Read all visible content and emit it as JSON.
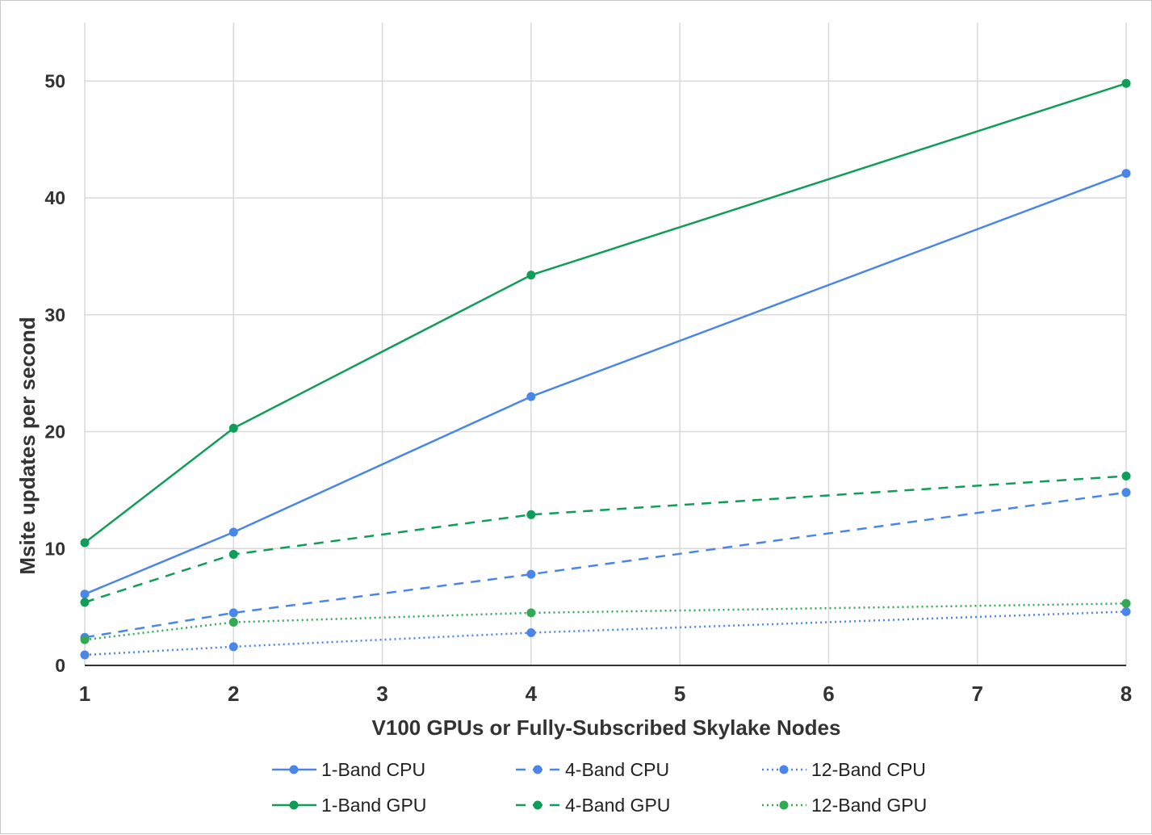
{
  "chart_data": {
    "type": "line",
    "title": "",
    "xlabel": "V100 GPUs or Fully-Subscribed Skylake Nodes",
    "ylabel": "Msite updates per second",
    "xlim": [
      1,
      8
    ],
    "ylim": [
      0,
      55
    ],
    "x_ticks": [
      "1",
      "2",
      "3",
      "4",
      "5",
      "6",
      "7",
      "8"
    ],
    "y_ticks": [
      "0",
      "10",
      "20",
      "30",
      "40",
      "50"
    ],
    "grid": true,
    "legend_position": "bottom",
    "series": [
      {
        "name": "1-Band CPU",
        "color": "#4a86e8",
        "style": "solid",
        "x": [
          1,
          2,
          4,
          8
        ],
        "y": [
          6.1,
          11.4,
          23.0,
          42.1
        ]
      },
      {
        "name": "4-Band CPU",
        "color": "#4a86e8",
        "style": "dashed",
        "x": [
          1,
          2,
          4,
          8
        ],
        "y": [
          2.4,
          4.5,
          7.8,
          14.8
        ]
      },
      {
        "name": "12-Band CPU",
        "color": "#4a86e8",
        "style": "dotted",
        "x": [
          1,
          2,
          4,
          8
        ],
        "y": [
          0.9,
          1.6,
          2.8,
          4.6
        ]
      },
      {
        "name": "1-Band GPU",
        "color": "#0f9d58",
        "style": "solid",
        "x": [
          1,
          2,
          4,
          8
        ],
        "y": [
          10.5,
          20.3,
          33.4,
          49.8
        ]
      },
      {
        "name": "4-Band GPU",
        "color": "#0f9d58",
        "style": "dashed",
        "x": [
          1,
          2,
          4,
          8
        ],
        "y": [
          5.4,
          9.5,
          12.9,
          16.2
        ]
      },
      {
        "name": "12-Band GPU",
        "color": "#34a853",
        "style": "dotted",
        "x": [
          1,
          2,
          4,
          8
        ],
        "y": [
          2.2,
          3.7,
          4.5,
          5.3
        ]
      }
    ]
  }
}
